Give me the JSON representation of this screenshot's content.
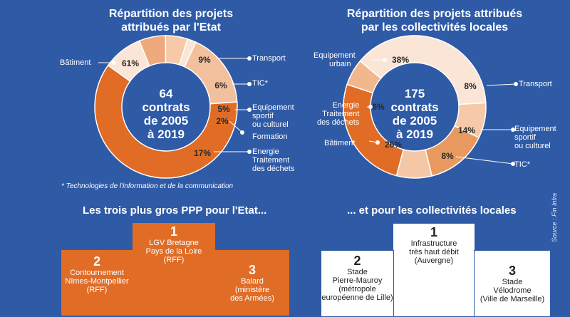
{
  "chart_data": [
    {
      "type": "pie",
      "title_line1": "Répartition des projets",
      "title_line2": "attribués par l'Etat",
      "center": [
        "64",
        "contrats",
        "de 2005",
        "à 2019"
      ],
      "slices": [
        {
          "label": "Bâtiment",
          "value": 61,
          "pct": "61%",
          "color": "#e06c26"
        },
        {
          "label": "Transport",
          "value": 9,
          "pct": "9%",
          "color": "#fbe5d6"
        },
        {
          "label": "TIC*",
          "value": 6,
          "pct": "6%",
          "color": "#eeaa7c"
        },
        {
          "label": "Equipement sportif ou culturel",
          "value": 5,
          "pct": "5%",
          "color": "#f6c9a8"
        },
        {
          "label": "Formation",
          "value": 2,
          "pct": "2%",
          "color": "#fbe5d6"
        },
        {
          "label": "Energie Traitement des déchets",
          "value": 17,
          "pct": "17%",
          "color": "#f3c09d"
        }
      ]
    },
    {
      "type": "pie",
      "title_line1": "Répartition des projets attribués",
      "title_line2": "par les collectivités locales",
      "center": [
        "175",
        "contrats",
        "de 2005",
        "à 2019"
      ],
      "slices": [
        {
          "label": "Equipement urbain",
          "value": 38,
          "pct": "38%",
          "color": "#fbe5d6"
        },
        {
          "label": "Transport",
          "value": 8,
          "pct": "8%",
          "color": "#f6c9a8"
        },
        {
          "label": "Equipement sportif ou culturel",
          "value": 14,
          "pct": "14%",
          "color": "#e8995f"
        },
        {
          "label": "TIC*",
          "value": 8,
          "pct": "8%",
          "color": "#f4c7a6"
        },
        {
          "label": "Bâtiment",
          "value": 26,
          "pct": "26%",
          "color": "#e06c26"
        },
        {
          "label": "Energie Traitement des déchets",
          "value": 6,
          "pct": "6%",
          "color": "#f1b88e"
        }
      ]
    }
  ],
  "labels_left": {
    "batiment": "Bâtiment",
    "transport": "Transport",
    "tic": "TIC*",
    "equip1": "Equipement",
    "equip2": "sportif",
    "equip3": "ou culturel",
    "formation": "Formation",
    "energie1": "Energie",
    "energie2": "Traitement",
    "energie3": "des déchets"
  },
  "labels_right": {
    "urbain1": "Equipement",
    "urbain2": "urbain",
    "transport": "Transport",
    "energie1": "Energie",
    "energie2": "Traitement",
    "energie3": "des déchets",
    "batiment": "Bâtiment",
    "equip1": "Equipement",
    "equip2": "sportif",
    "equip3": "ou culturel",
    "tic": "TIC*"
  },
  "footnote": "* Technologies de l'information et de la communication",
  "etat_heading": "Les trois plus gros PPP pour l'Etat...",
  "collectivites_heading": "... et pour les collectivités locales",
  "etat_podium": [
    {
      "rank": "1",
      "lines": [
        "LGV Bretagne",
        "Pays de la Loire",
        "(RFF)"
      ]
    },
    {
      "rank": "2",
      "lines": [
        "Contournement",
        "Nîmes-Montpellier",
        "(RFF)"
      ]
    },
    {
      "rank": "3",
      "lines": [
        "Balard",
        "(ministère",
        "des Armées)"
      ]
    }
  ],
  "collectivites_podium": [
    {
      "rank": "1",
      "lines": [
        "Infrastructure",
        "très haut débit",
        "(Auvergne)"
      ]
    },
    {
      "rank": "2",
      "lines": [
        "Stade",
        "Pierre-Mauroy",
        "(métropole",
        "européenne de Lille)"
      ]
    },
    {
      "rank": "3",
      "lines": [
        "Stade",
        "Vélodrome",
        "(Ville de Marseille)"
      ]
    }
  ],
  "source": "Source : Fin Infra"
}
